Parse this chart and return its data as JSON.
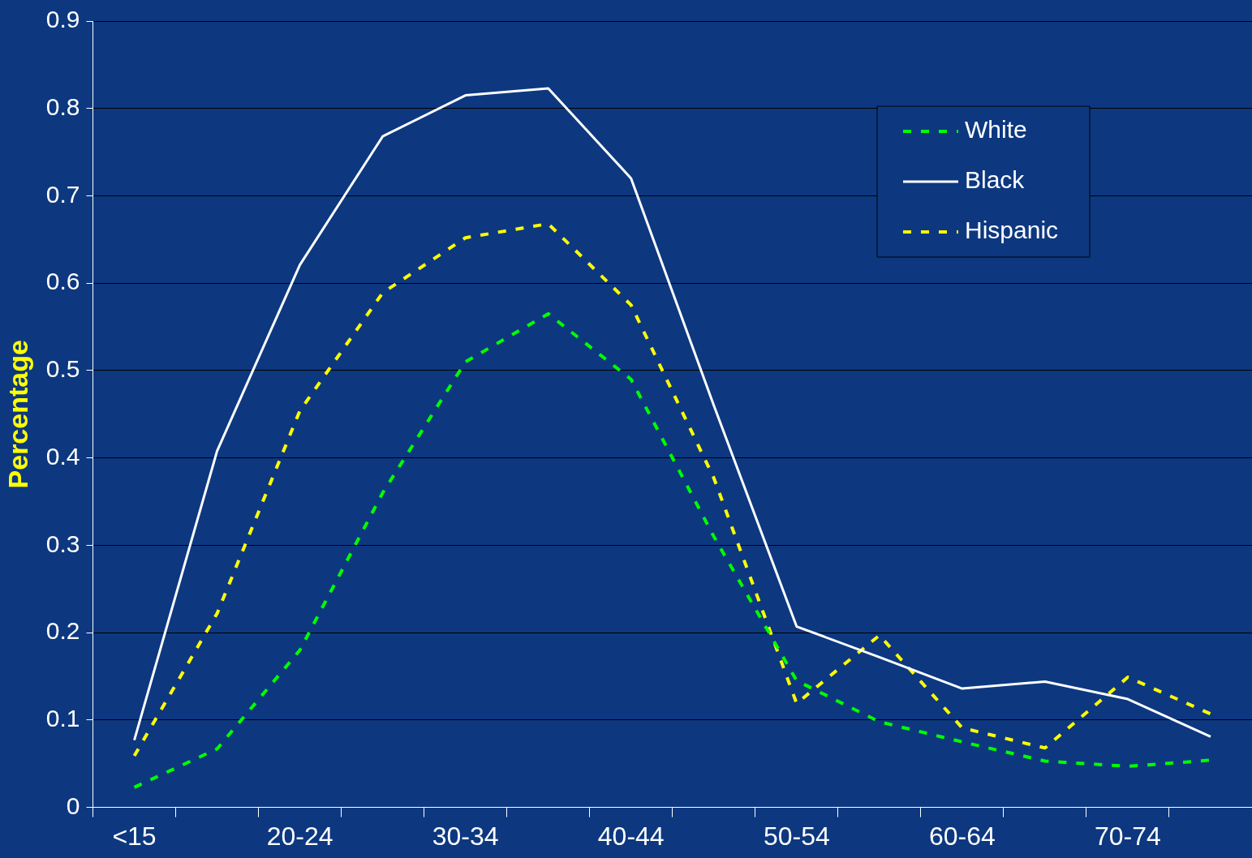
{
  "chart_data": {
    "type": "line",
    "ylabel": "Percentage",
    "categories": [
      "<15",
      null,
      "20-24",
      null,
      "30-34",
      null,
      "40-44",
      null,
      "50-54",
      null,
      "60-64",
      null,
      "70-74",
      null
    ],
    "series": [
      {
        "name": "White",
        "color": "#00ff00",
        "line_style": "dashed",
        "values": [
          0.023,
          0.067,
          0.18,
          0.36,
          0.51,
          0.565,
          0.49,
          0.31,
          0.145,
          0.098,
          0.075,
          0.053,
          0.047,
          0.054
        ]
      },
      {
        "name": "Black",
        "color": "#ffffff",
        "line_style": "solid",
        "values": [
          0.077,
          0.408,
          0.621,
          0.768,
          0.815,
          0.823,
          0.72,
          0.46,
          0.207,
          0.172,
          0.136,
          0.144,
          0.124,
          0.081
        ]
      },
      {
        "name": "Hispanic",
        "color": "#ffff00",
        "line_style": "dashed",
        "values": [
          0.059,
          0.222,
          0.454,
          0.589,
          0.652,
          0.668,
          0.575,
          0.377,
          0.119,
          0.197,
          0.091,
          0.068,
          0.149,
          0.107
        ]
      }
    ],
    "ylim": [
      0,
      0.9
    ],
    "yticks": [
      0,
      0.1,
      0.2,
      0.3,
      0.4,
      0.5,
      0.6,
      0.7,
      0.8,
      0.9
    ],
    "grid": "y",
    "legend": "top right",
    "marker": "none"
  }
}
